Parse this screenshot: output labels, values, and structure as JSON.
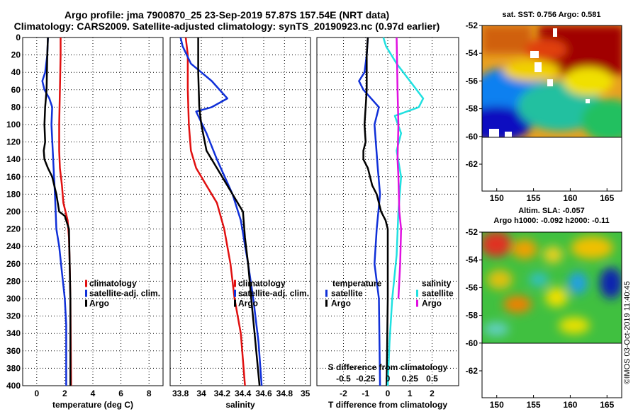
{
  "header": {
    "title_line1": "Argo profile: jma 7900870_25 23-Sep-2019 57.87S 157.54E (NRT data)",
    "title_line2": "Climatology: CARS2009. Satellite-adjusted climatology: synTS_20190923.nc (0.97d earlier)"
  },
  "colors": {
    "climatology": "#e01010",
    "satellite": "#1030d8",
    "argo": "#000000",
    "sat_salinity": "#20e0e0",
    "argo_salinity": "#e010e0"
  },
  "chart_data": [
    {
      "type": "line",
      "title": "",
      "xlabel": "temperature (deg C)",
      "ylabel": "",
      "xlim": [
        -1,
        9
      ],
      "ylim": [
        400,
        0
      ],
      "xticks": [
        "0",
        "2",
        "4",
        "6",
        "8"
      ],
      "xtick_values": [
        0,
        2,
        4,
        6,
        8
      ],
      "yticks": [
        "0",
        "20",
        "40",
        "60",
        "80",
        "100",
        "120",
        "140",
        "160",
        "180",
        "200",
        "220",
        "240",
        "260",
        "280",
        "300",
        "320",
        "340",
        "360",
        "380",
        "400"
      ],
      "legend": [
        "climatology",
        "satellite-adj. clim.",
        "Argo"
      ],
      "series": [
        {
          "name": "climatology",
          "color": "#e01010",
          "points": [
            [
              1.7,
              0
            ],
            [
              1.7,
              20
            ],
            [
              1.65,
              60
            ],
            [
              1.6,
              100
            ],
            [
              1.6,
              130
            ],
            [
              1.65,
              150
            ],
            [
              1.8,
              170
            ],
            [
              1.9,
              190
            ],
            [
              2.2,
              210
            ],
            [
              2.3,
              230
            ],
            [
              2.35,
              260
            ],
            [
              2.4,
              300
            ],
            [
              2.45,
              400
            ]
          ]
        },
        {
          "name": "satellite-adj. clim.",
          "color": "#1030d8",
          "points": [
            [
              0.8,
              0
            ],
            [
              0.75,
              20
            ],
            [
              0.6,
              40
            ],
            [
              0.4,
              50
            ],
            [
              0.55,
              60
            ],
            [
              0.9,
              70
            ],
            [
              1.1,
              80
            ],
            [
              1.05,
              100
            ],
            [
              1.2,
              150
            ],
            [
              1.3,
              180
            ],
            [
              1.4,
              220
            ],
            [
              1.6,
              240
            ],
            [
              1.8,
              270
            ],
            [
              2.0,
              300
            ],
            [
              2.1,
              330
            ],
            [
              2.1,
              400
            ]
          ]
        },
        {
          "name": "Argo",
          "color": "#000000",
          "points": [
            [
              0.8,
              0
            ],
            [
              0.75,
              20
            ],
            [
              0.7,
              60
            ],
            [
              0.6,
              80
            ],
            [
              0.55,
              100
            ],
            [
              0.6,
              120
            ],
            [
              0.5,
              130
            ],
            [
              0.55,
              140
            ],
            [
              0.8,
              150
            ],
            [
              1.1,
              160
            ],
            [
              1.4,
              180
            ],
            [
              1.6,
              200
            ],
            [
              2.0,
              205
            ],
            [
              2.3,
              220
            ],
            [
              2.35,
              260
            ],
            [
              2.4,
              300
            ],
            [
              2.4,
              400
            ]
          ]
        }
      ]
    },
    {
      "type": "line",
      "title": "",
      "xlabel": "salinity",
      "ylabel": "",
      "xlim": [
        33.7,
        35.05
      ],
      "ylim": [
        400,
        0
      ],
      "xticks": [
        "33.8",
        "34",
        "34.2",
        "34.4",
        "34.6",
        "34.8",
        "35"
      ],
      "xtick_values": [
        33.8,
        34.0,
        34.2,
        34.4,
        34.6,
        34.8,
        35.0
      ],
      "legend": [
        "climatology",
        "satellite-adj. clim.",
        "Argo"
      ],
      "series": [
        {
          "name": "climatology",
          "color": "#e01010",
          "points": [
            [
              33.85,
              0
            ],
            [
              33.87,
              20
            ],
            [
              33.87,
              60
            ],
            [
              33.88,
              100
            ],
            [
              33.9,
              130
            ],
            [
              33.95,
              150
            ],
            [
              34.05,
              170
            ],
            [
              34.15,
              190
            ],
            [
              34.22,
              220
            ],
            [
              34.28,
              260
            ],
            [
              34.32,
              300
            ],
            [
              34.38,
              340
            ],
            [
              34.42,
              400
            ]
          ]
        },
        {
          "name": "satellite-adj. clim.",
          "color": "#1030d8",
          "points": [
            [
              33.8,
              0
            ],
            [
              33.82,
              10
            ],
            [
              33.9,
              30
            ],
            [
              34.0,
              40
            ],
            [
              34.1,
              50
            ],
            [
              34.25,
              70
            ],
            [
              34.1,
              80
            ],
            [
              33.95,
              85
            ],
            [
              34.05,
              110
            ],
            [
              34.15,
              140
            ],
            [
              34.3,
              180
            ],
            [
              34.38,
              210
            ],
            [
              34.45,
              260
            ],
            [
              34.5,
              300
            ],
            [
              34.55,
              350
            ],
            [
              34.58,
              400
            ]
          ]
        },
        {
          "name": "Argo",
          "color": "#000000",
          "points": [
            [
              33.97,
              0
            ],
            [
              33.97,
              40
            ],
            [
              33.98,
              80
            ],
            [
              34.0,
              100
            ],
            [
              34.05,
              130
            ],
            [
              34.15,
              150
            ],
            [
              34.25,
              170
            ],
            [
              34.35,
              190
            ],
            [
              34.4,
              200
            ],
            [
              34.42,
              230
            ],
            [
              34.45,
              260
            ],
            [
              34.48,
              300
            ],
            [
              34.52,
              350
            ],
            [
              34.56,
              400
            ]
          ]
        }
      ]
    },
    {
      "type": "line",
      "title": "",
      "xlabel": "T difference from climatology",
      "ylabel": "",
      "xlim": [
        -3.2,
        3.2
      ],
      "ylim": [
        400,
        0
      ],
      "xticks": [
        "-2",
        "-1",
        "0",
        "1",
        "2"
      ],
      "xtick_values": [
        -2,
        -1,
        0,
        1,
        2
      ],
      "secondary_axis": {
        "label": "S difference from climatology",
        "ticks": [
          "-0.5",
          "-0.25",
          "0",
          "0.25",
          "0.5"
        ],
        "tick_values": [
          -0.5,
          -0.25,
          0,
          0.25,
          0.5
        ],
        "xlim": [
          -0.8,
          0.8
        ]
      },
      "legend_temperature": {
        "title": "temperature",
        "items": [
          "satellite",
          "Argo"
        ]
      },
      "legend_salinity": {
        "title": "salinity",
        "items": [
          "satellite",
          "Argo"
        ]
      },
      "series": [
        {
          "name": "temperature satellite",
          "color": "#1030d8",
          "points": [
            [
              -0.9,
              0
            ],
            [
              -0.95,
              20
            ],
            [
              -1.05,
              40
            ],
            [
              -1.3,
              50
            ],
            [
              -1.1,
              60
            ],
            [
              -0.4,
              80
            ],
            [
              -0.6,
              100
            ],
            [
              -0.45,
              150
            ],
            [
              -0.35,
              180
            ],
            [
              -0.5,
              220
            ],
            [
              -0.6,
              260
            ],
            [
              -0.4,
              300
            ],
            [
              -0.35,
              400
            ]
          ]
        },
        {
          "name": "temperature Argo",
          "color": "#000000",
          "points": [
            [
              -0.9,
              0
            ],
            [
              -0.95,
              20
            ],
            [
              -0.95,
              60
            ],
            [
              -1.0,
              80
            ],
            [
              -1.05,
              100
            ],
            [
              -1.0,
              120
            ],
            [
              -1.1,
              130
            ],
            [
              -1.1,
              140
            ],
            [
              -0.9,
              150
            ],
            [
              -0.7,
              170
            ],
            [
              -0.5,
              180
            ],
            [
              -0.3,
              200
            ],
            [
              -0.1,
              210
            ],
            [
              0.0,
              220
            ],
            [
              0.0,
              260
            ],
            [
              0.0,
              300
            ],
            [
              -0.05,
              400
            ]
          ]
        },
        {
          "name": "salinity satellite",
          "color": "#20e0e0",
          "points": [
            [
              -0.05,
              0
            ],
            [
              -0.02,
              10
            ],
            [
              0.1,
              30
            ],
            [
              0.25,
              50
            ],
            [
              0.4,
              70
            ],
            [
              0.35,
              80
            ],
            [
              0.08,
              90
            ],
            [
              0.15,
              110
            ],
            [
              0.1,
              130
            ],
            [
              0.15,
              160
            ],
            [
              0.12,
              200
            ],
            [
              0.1,
              250
            ],
            [
              0.05,
              300
            ],
            [
              0.02,
              350
            ],
            [
              0.0,
              400
            ]
          ]
        },
        {
          "name": "salinity Argo",
          "color": "#e010e0",
          "points": [
            [
              0.1,
              0
            ],
            [
              0.11,
              60
            ],
            [
              0.12,
              100
            ],
            [
              0.11,
              140
            ],
            [
              0.12,
              160
            ],
            [
              0.13,
              200
            ],
            [
              0.15,
              220
            ],
            [
              0.14,
              260
            ],
            [
              0.12,
              300
            ]
          ]
        }
      ]
    }
  ],
  "maps": {
    "sst_title": "sat. SST: 0.756 Argo: 0.581",
    "sla_title_line1": "Altim. SLA: -0.057",
    "sla_title_line2": "Argo h1000: -0.092 h2000: -0.11",
    "lat_ticks": [
      "-52",
      "-54",
      "-56",
      "-58",
      "-60",
      "-62"
    ],
    "lon_ticks": [
      "150",
      "155",
      "160",
      "165"
    ]
  },
  "footer": {
    "stamp": "©IMOS 03-Oct-2019 11:40:45"
  }
}
